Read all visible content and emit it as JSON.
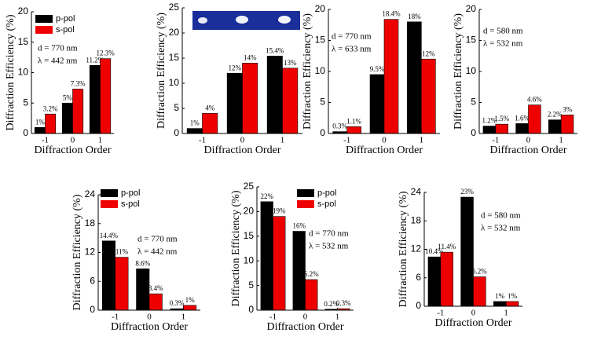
{
  "chart_data": [
    {
      "type": "bar",
      "y_label": "Diffraction Efficiency (%)",
      "x_label": "Diffraction Order",
      "categories": [
        "-1",
        "0",
        "1"
      ],
      "series": [
        {
          "name": "p-pol",
          "color": "#000000",
          "values": [
            1,
            5,
            11.2
          ],
          "value_labels": [
            "1%",
            "5%",
            "11.2%"
          ]
        },
        {
          "name": "s-pol",
          "color": "#ee0000",
          "values": [
            3.2,
            7.3,
            12.3
          ],
          "value_labels": [
            "3.2%",
            "7.3%",
            "12.3%"
          ]
        }
      ],
      "ylim": [
        0,
        20
      ],
      "yticks": [
        0,
        5,
        10,
        15,
        20
      ],
      "legend": true,
      "annotations": [
        "d = 770 nm",
        "λ = 442 nm"
      ]
    },
    {
      "type": "bar",
      "y_label": "Diffraction Efficiency (%)",
      "x_label": "Diffraction Order",
      "categories": [
        "-1",
        "0",
        "1"
      ],
      "series": [
        {
          "color": "#000000",
          "values": [
            1,
            12,
            15.4
          ],
          "value_labels": [
            "1%",
            "12%",
            "15.4%"
          ]
        },
        {
          "color": "#ee0000",
          "values": [
            4,
            14,
            13
          ],
          "value_labels": [
            "4%",
            "14%",
            "13%"
          ]
        }
      ],
      "ylim": [
        0,
        25
      ],
      "yticks": [
        0,
        5,
        10,
        15,
        20,
        25
      ],
      "legend": false,
      "annotations": []
    },
    {
      "type": "bar",
      "y_label": "Diffraction Efficiency (%)",
      "x_label": "Diffraction Order",
      "categories": [
        "-1",
        "0",
        "1"
      ],
      "series": [
        {
          "color": "#000000",
          "values": [
            0.3,
            9.5,
            18
          ],
          "value_labels": [
            "0.3%",
            "9.5%",
            "18%"
          ]
        },
        {
          "color": "#ee0000",
          "values": [
            1.1,
            18.4,
            12
          ],
          "value_labels": [
            "1.1%",
            "18.4%",
            "12%"
          ]
        }
      ],
      "ylim": [
        0,
        20
      ],
      "yticks": [
        0,
        5,
        10,
        15,
        20
      ],
      "legend": false,
      "annotations": [
        "d = 770 nm",
        "λ = 633 nm"
      ]
    },
    {
      "type": "bar",
      "y_label": "Diffraction Efficiency (%)",
      "x_label": "Diffraction Order",
      "categories": [
        "-1",
        "0",
        "1"
      ],
      "series": [
        {
          "color": "#000000",
          "values": [
            1.2,
            1.6,
            2.2
          ],
          "value_labels": [
            "1.2%",
            "1.6%",
            "2.2%"
          ]
        },
        {
          "color": "#ee0000",
          "values": [
            1.5,
            4.6,
            3
          ],
          "value_labels": [
            "1.5%",
            "4.6%",
            "3%"
          ]
        }
      ],
      "ylim": [
        0,
        20
      ],
      "yticks": [
        0,
        5,
        10,
        15,
        20
      ],
      "legend": false,
      "annotations": [
        "d = 580 nm",
        "λ = 532 nm"
      ]
    },
    {
      "type": "bar",
      "y_label": "Diffraction Efficiency (%)",
      "x_label": "Diffraction Order",
      "categories": [
        "-1",
        "0",
        "1"
      ],
      "series": [
        {
          "name": "p-pol",
          "color": "#000000",
          "values": [
            14.4,
            8.6,
            0.3
          ],
          "value_labels": [
            "14.4%",
            "8.6%",
            "0.3%"
          ]
        },
        {
          "name": "s-pol",
          "color": "#ee0000",
          "values": [
            11,
            3.4,
            1
          ],
          "value_labels": [
            "11%",
            "3.4%",
            "1%"
          ]
        }
      ],
      "ylim": [
        0,
        24
      ],
      "yticks": [
        0,
        6,
        12,
        18,
        24
      ],
      "legend": true,
      "annotations": [
        "d = 770 nm",
        "λ = 442 nm"
      ]
    },
    {
      "type": "bar",
      "y_label": "Diffraction Efficiency (%)",
      "x_label": "Diffraction Order",
      "categories": [
        "-1",
        "0",
        "1"
      ],
      "series": [
        {
          "name": "p-pol",
          "color": "#000000",
          "values": [
            22,
            16,
            0.2
          ],
          "value_labels": [
            "22%",
            "16%",
            "0.2%"
          ]
        },
        {
          "name": "s-pol",
          "color": "#ee0000",
          "values": [
            19,
            6.2,
            0.3
          ],
          "value_labels": [
            "19%",
            "6.2%",
            "0.3%"
          ]
        }
      ],
      "ylim": [
        0,
        25
      ],
      "yticks": [
        0,
        5,
        10,
        15,
        20,
        25
      ],
      "legend": true,
      "annotations": [
        "d = 770 nm",
        "λ = 532 nm"
      ]
    },
    {
      "type": "bar",
      "y_label": "Diffraction Efficiency (%)",
      "x_label": "Diffraction Order",
      "categories": [
        "-1",
        "0",
        "1"
      ],
      "series": [
        {
          "color": "#000000",
          "values": [
            10.4,
            23,
            1
          ],
          "value_labels": [
            "10.4%",
            "23%",
            "1%"
          ]
        },
        {
          "color": "#ee0000",
          "values": [
            11.4,
            6.2,
            1
          ],
          "value_labels": [
            "11.4%",
            "6.2%",
            "1%"
          ]
        }
      ],
      "ylim": [
        0,
        24
      ],
      "yticks": [
        0,
        6,
        12,
        18,
        24
      ],
      "legend": false,
      "annotations": [
        "d = 580 nm",
        "λ = 532 nm"
      ]
    }
  ]
}
